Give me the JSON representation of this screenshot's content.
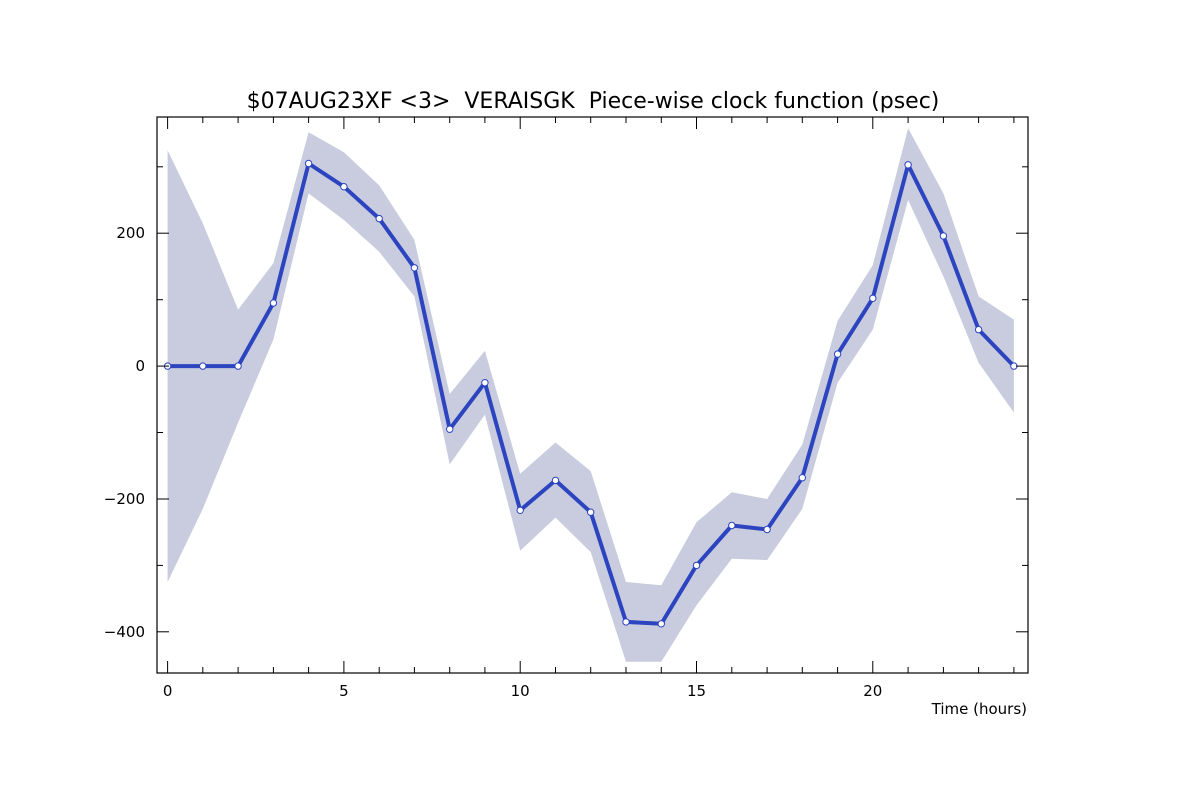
{
  "chart_data": {
    "type": "line",
    "title": "$07AUG23XF <3>  VERAISGK  Piece-wise clock function (psec)",
    "xlabel": "Time (hours)",
    "ylabel": "",
    "xlim": [
      -0.3,
      24.4
    ],
    "ylim": [
      -462,
      375
    ],
    "x_ticks_major": [
      0,
      5,
      10,
      15,
      20
    ],
    "x_tick_labels": [
      "0",
      "5",
      "10",
      "15",
      "20"
    ],
    "y_ticks_major": [
      -400,
      -200,
      0,
      200
    ],
    "y_tick_labels": [
      "−400",
      "−200",
      "0",
      "200"
    ],
    "grid": false,
    "series": [
      {
        "x": [
          0,
          1,
          2,
          3,
          4,
          5,
          6,
          7,
          8,
          9,
          10,
          11,
          12,
          13,
          14,
          15,
          16,
          17,
          18,
          19,
          20,
          21,
          22,
          23,
          24
        ],
        "values": [
          0,
          0,
          0,
          95,
          305,
          270,
          222,
          148,
          -95,
          -25,
          -217,
          -172,
          -220,
          -385,
          -388,
          -300,
          -240,
          -246,
          -168,
          18,
          102,
          303,
          196,
          55,
          0
        ],
        "upper": [
          325,
          215,
          85,
          155,
          352,
          322,
          272,
          190,
          -42,
          23,
          -162,
          -115,
          -158,
          -325,
          -330,
          -235,
          -190,
          -200,
          -118,
          68,
          152,
          358,
          260,
          105,
          70
        ],
        "lower": [
          -325,
          -215,
          -85,
          40,
          260,
          220,
          172,
          105,
          -148,
          -73,
          -278,
          -228,
          -280,
          -445,
          -445,
          -360,
          -290,
          -292,
          -215,
          -25,
          55,
          250,
          135,
          5,
          -70
        ]
      }
    ],
    "colors": {
      "band": "#c8ccde",
      "line": "#2c44bf",
      "marker_fill": "#ffffff",
      "axis": "#000000"
    }
  }
}
